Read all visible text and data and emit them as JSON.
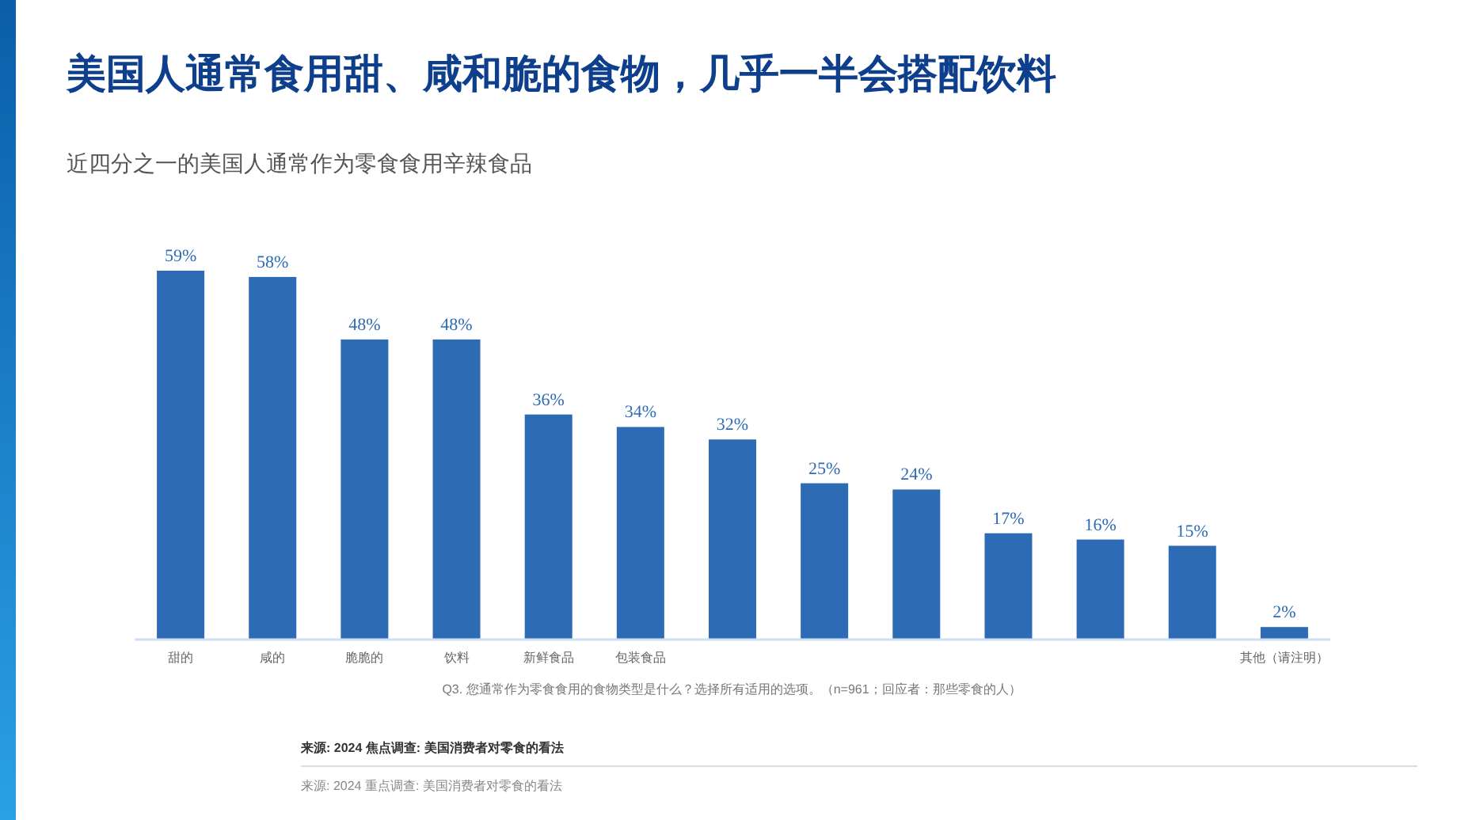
{
  "chart_data": {
    "type": "bar",
    "title": "美国人通常食用甜、咸和脆的食物，几乎一半会搭配饮料",
    "subtitle": "近四分之一的美国人通常作为零食食用辛辣食品",
    "categories": [
      "甜的",
      "咸的",
      "脆脆的",
      "饮料",
      "新鲜食品",
      "包装食品",
      null,
      null,
      null,
      null,
      null,
      null,
      "其他（请注明）"
    ],
    "values": [
      59,
      58,
      48,
      48,
      36,
      34,
      32,
      25,
      24,
      17,
      16,
      15,
      2
    ],
    "value_labels": [
      "59%",
      "58%",
      "48%",
      "48%",
      "36%",
      "34%",
      "32%",
      "25%",
      "24%",
      "17%",
      "16%",
      "15%",
      "2%"
    ],
    "color": "#2e6bb5",
    "annotations": [
      "Q3. 您通常作为零食食用的食物类型是什么？选择所有适用的选项。（n=961；回应者：那些零食的人）",
      "来源: 2024 焦点调查: 美国消费者对零食的看法",
      "来源: 2024 重点调查: 美国消费者对零食的看法"
    ]
  }
}
